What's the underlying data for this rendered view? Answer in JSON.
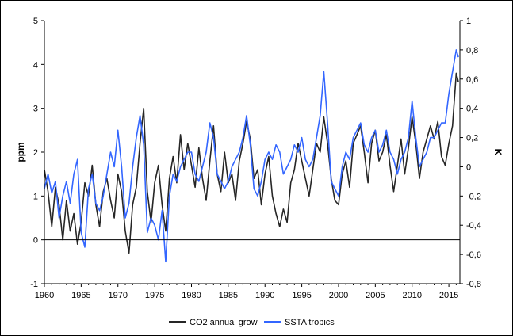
{
  "chart_data": {
    "type": "line",
    "title": "",
    "xlabel": "",
    "ylabel_left": "ppm",
    "ylabel_right": "K",
    "xlim": [
      1960,
      2016.5
    ],
    "ylim_left": [
      -1,
      5
    ],
    "ylim_right": [
      -0.8,
      1.0
    ],
    "x_ticks": [
      1960,
      1965,
      1970,
      1975,
      1980,
      1985,
      1990,
      1995,
      2000,
      2005,
      2010,
      2015
    ],
    "y_left_ticks": [
      -1,
      0,
      1,
      2,
      3,
      4,
      5
    ],
    "y_right_ticks": [
      "-0,8",
      "-0,6",
      "-0,4",
      "-0,2",
      "0",
      "0,2",
      "0,4",
      "0,6",
      "0,8",
      "1"
    ],
    "grid": false,
    "legend_position": "bottom",
    "series": [
      {
        "name": "CO2 annual grow",
        "axis": "left",
        "color": "#262626",
        "x": [
          1960.0,
          1960.5,
          1961.0,
          1961.5,
          1962.0,
          1962.5,
          1963.0,
          1963.5,
          1964.0,
          1964.5,
          1965.0,
          1965.5,
          1966.0,
          1966.5,
          1967.0,
          1967.5,
          1968.0,
          1968.5,
          1969.0,
          1969.5,
          1970.0,
          1970.5,
          1971.0,
          1971.5,
          1972.0,
          1972.5,
          1973.0,
          1973.5,
          1974.0,
          1974.5,
          1975.0,
          1975.5,
          1976.0,
          1976.5,
          1977.0,
          1977.5,
          1978.0,
          1978.5,
          1979.0,
          1979.5,
          1980.0,
          1980.5,
          1981.0,
          1981.5,
          1982.0,
          1982.5,
          1983.0,
          1983.5,
          1984.0,
          1984.5,
          1985.0,
          1985.5,
          1986.0,
          1986.5,
          1987.0,
          1987.5,
          1988.0,
          1988.5,
          1989.0,
          1989.5,
          1990.0,
          1990.5,
          1991.0,
          1991.5,
          1992.0,
          1992.5,
          1993.0,
          1993.5,
          1994.0,
          1994.5,
          1995.0,
          1995.5,
          1996.0,
          1996.5,
          1997.0,
          1997.5,
          1998.0,
          1998.5,
          1999.0,
          1999.5,
          2000.0,
          2000.5,
          2001.0,
          2001.5,
          2002.0,
          2002.5,
          2003.0,
          2003.5,
          2004.0,
          2004.5,
          2005.0,
          2005.5,
          2006.0,
          2006.5,
          2007.0,
          2007.5,
          2008.0,
          2008.5,
          2009.0,
          2009.5,
          2010.0,
          2010.5,
          2011.0,
          2011.5,
          2012.0,
          2012.5,
          2013.0,
          2013.5,
          2014.0,
          2014.5,
          2015.0,
          2015.5,
          2016.0,
          2016.3
        ],
        "y": [
          1.6,
          1.1,
          0.3,
          1.2,
          0.8,
          0.0,
          0.9,
          0.2,
          0.6,
          -0.1,
          0.4,
          1.3,
          1.0,
          1.7,
          0.8,
          0.3,
          1.1,
          1.4,
          0.9,
          0.5,
          1.5,
          1.1,
          0.2,
          -0.3,
          0.8,
          1.2,
          2.2,
          3.0,
          1.1,
          0.4,
          1.3,
          1.7,
          0.8,
          0.2,
          1.4,
          1.9,
          1.3,
          2.4,
          1.6,
          2.2,
          1.7,
          1.2,
          2.1,
          1.4,
          0.9,
          1.8,
          2.6,
          1.5,
          1.1,
          2.0,
          1.3,
          1.5,
          0.9,
          1.8,
          2.2,
          2.7,
          2.3,
          1.4,
          1.6,
          0.8,
          1.5,
          1.9,
          1.0,
          0.6,
          0.3,
          0.7,
          0.4,
          1.3,
          1.6,
          2.2,
          1.8,
          1.4,
          1.0,
          1.6,
          2.2,
          2.0,
          2.8,
          2.2,
          1.4,
          0.9,
          0.8,
          1.5,
          1.8,
          1.2,
          2.2,
          2.4,
          2.6,
          2.0,
          1.3,
          2.2,
          2.5,
          1.8,
          2.0,
          2.4,
          1.7,
          1.1,
          1.7,
          2.3,
          1.5,
          2.1,
          2.8,
          2.2,
          1.4,
          2.0,
          2.3,
          2.6,
          2.3,
          2.7,
          1.9,
          1.7,
          2.2,
          2.6,
          3.8,
          3.6
        ]
      },
      {
        "name": "SSTA tropics",
        "axis": "right",
        "color": "#3366ff",
        "x": [
          1960.0,
          1960.5,
          1961.0,
          1961.5,
          1962.0,
          1962.5,
          1963.0,
          1963.5,
          1964.0,
          1964.5,
          1965.0,
          1965.5,
          1966.0,
          1966.5,
          1967.0,
          1967.5,
          1968.0,
          1968.5,
          1969.0,
          1969.5,
          1970.0,
          1970.5,
          1971.0,
          1971.5,
          1972.0,
          1972.5,
          1973.0,
          1973.5,
          1974.0,
          1974.5,
          1975.0,
          1975.5,
          1976.0,
          1976.5,
          1977.0,
          1977.5,
          1978.0,
          1978.5,
          1979.0,
          1979.5,
          1980.0,
          1980.5,
          1981.0,
          1981.5,
          1982.0,
          1982.5,
          1983.0,
          1983.5,
          1984.0,
          1984.5,
          1985.0,
          1985.5,
          1986.0,
          1986.5,
          1987.0,
          1987.5,
          1988.0,
          1988.5,
          1989.0,
          1989.5,
          1990.0,
          1990.5,
          1991.0,
          1991.5,
          1992.0,
          1992.5,
          1993.0,
          1993.5,
          1994.0,
          1994.5,
          1995.0,
          1995.5,
          1996.0,
          1996.5,
          1997.0,
          1997.5,
          1998.0,
          1998.5,
          1999.0,
          1999.5,
          2000.0,
          2000.5,
          2001.0,
          2001.5,
          2002.0,
          2002.5,
          2003.0,
          2003.5,
          2004.0,
          2004.5,
          2005.0,
          2005.5,
          2006.0,
          2006.5,
          2007.0,
          2007.5,
          2008.0,
          2008.5,
          2009.0,
          2009.5,
          2010.0,
          2010.5,
          2011.0,
          2011.5,
          2012.0,
          2012.5,
          2013.0,
          2013.5,
          2014.0,
          2014.5,
          2015.0,
          2015.5,
          2016.0,
          2016.3
        ],
        "y": [
          -0.15,
          -0.05,
          -0.18,
          -0.1,
          -0.35,
          -0.2,
          -0.1,
          -0.25,
          -0.05,
          0.05,
          -0.45,
          -0.55,
          -0.15,
          -0.05,
          -0.25,
          -0.3,
          -0.2,
          -0.05,
          0.1,
          0.0,
          0.25,
          0.0,
          -0.35,
          -0.25,
          0.0,
          0.2,
          0.35,
          0.15,
          -0.45,
          -0.35,
          -0.4,
          -0.5,
          -0.3,
          -0.65,
          -0.2,
          -0.05,
          -0.1,
          0.0,
          0.05,
          0.1,
          0.1,
          -0.05,
          -0.1,
          0.0,
          0.1,
          0.3,
          0.2,
          -0.05,
          -0.1,
          -0.15,
          -0.1,
          0.0,
          0.05,
          0.1,
          0.2,
          0.35,
          0.15,
          -0.15,
          -0.2,
          -0.1,
          0.05,
          0.1,
          0.05,
          0.15,
          0.1,
          -0.05,
          0.0,
          0.05,
          0.15,
          0.1,
          0.2,
          0.05,
          0.0,
          0.05,
          0.2,
          0.35,
          0.65,
          0.3,
          -0.1,
          -0.15,
          -0.2,
          0.0,
          0.1,
          0.05,
          0.2,
          0.25,
          0.3,
          0.15,
          0.1,
          0.2,
          0.25,
          0.1,
          0.15,
          0.25,
          0.1,
          0.05,
          -0.05,
          0.05,
          0.1,
          0.2,
          0.45,
          0.2,
          0.0,
          0.05,
          0.1,
          0.2,
          0.2,
          0.25,
          0.3,
          0.3,
          0.5,
          0.65,
          0.8,
          0.75
        ]
      }
    ]
  }
}
